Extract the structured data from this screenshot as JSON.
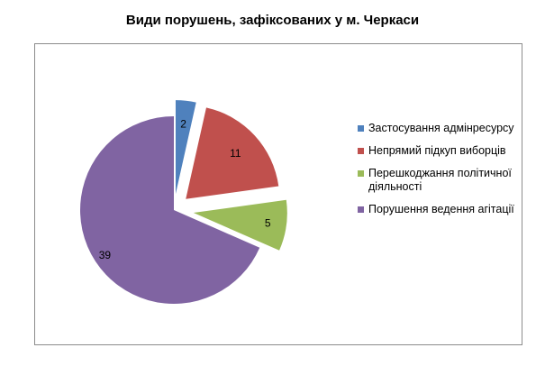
{
  "chart_data": {
    "type": "pie",
    "title": "Види порушень, зафіксованих у м. Черкаси",
    "categories": [
      "Застосування адмінресурсу",
      "Непрямий підкуп виборців",
      "Перешкоджання політичної діяльності",
      "Порушення ведення агітації"
    ],
    "values": [
      2,
      11,
      5,
      39
    ],
    "colors": [
      "#4f81bd",
      "#c0504d",
      "#9bbb59",
      "#8064a2"
    ],
    "exploded": true,
    "legend_position": "right"
  }
}
